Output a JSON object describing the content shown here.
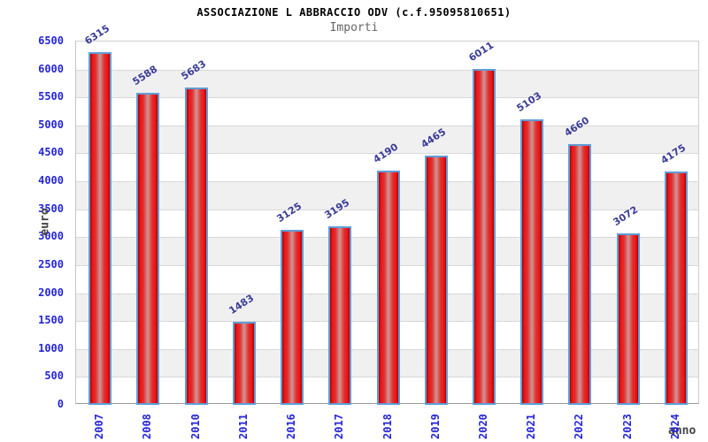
{
  "chart_data": {
    "type": "bar",
    "title": "ASSOCIAZIONE L ABBRACCIO ODV (c.f.95095810651)",
    "subtitle": "Importi",
    "xlabel": "anno",
    "ylabel": "euro",
    "categories": [
      "2007",
      "2008",
      "2010",
      "2011",
      "2016",
      "2017",
      "2018",
      "2019",
      "2020",
      "2021",
      "2022",
      "2023",
      "2024"
    ],
    "values": [
      6315,
      5588,
      5683,
      1483,
      3125,
      3195,
      4190,
      4465,
      6011,
      5103,
      4660,
      3072,
      4175
    ],
    "ylim": [
      0,
      6500
    ],
    "ytick_step": 500,
    "grid": true,
    "bands_alternating": true,
    "legend_position": "none",
    "colors": {
      "title": "#000000",
      "subtitle": "#666666",
      "tick_label": "#2525d8",
      "value_label": "#3a3c96",
      "axis_title": "#444444",
      "band": "#f0f0f1",
      "gridline": "#d8d8d8",
      "bar_border": "#5f9dd8",
      "bar_edge": "#a50000",
      "bar_bright": "#ee1414",
      "bar_center": "#cf9694"
    }
  }
}
